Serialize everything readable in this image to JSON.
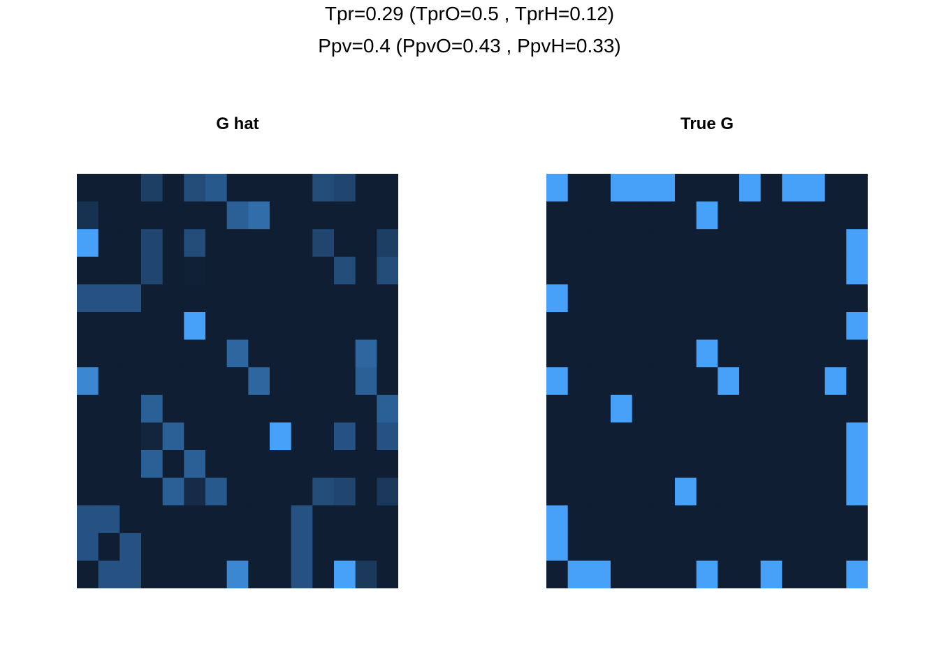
{
  "figure": {
    "title_line_1": "Tpr=0.29 (TprO=0.5 , TprH=0.12)",
    "title_line_2": "Ppv=0.4 (PpvO=0.43 , PpvH=0.33)"
  },
  "colors": {
    "low": "#0f1e33",
    "high": "#47a1f8"
  },
  "chart_data": [
    {
      "type": "heatmap",
      "title": "G hat",
      "rows": 15,
      "cols": 15,
      "value_range": [
        0,
        1
      ],
      "values": [
        [
          0,
          0,
          0,
          0.25,
          0,
          0.35,
          0.45,
          0,
          0,
          0,
          0,
          0.35,
          0.3,
          0,
          0
        ],
        [
          0.15,
          0,
          0,
          0,
          0,
          0,
          0,
          0.5,
          0.6,
          0,
          0,
          0,
          0,
          0,
          0
        ],
        [
          1,
          0,
          0,
          0.3,
          0,
          0.35,
          0,
          0,
          0,
          0,
          0,
          0.3,
          0,
          0,
          0.25
        ],
        [
          0,
          0,
          0,
          0.3,
          0,
          0.02,
          0,
          0,
          0,
          0,
          0,
          0,
          0.35,
          0,
          0.35
        ],
        [
          0.4,
          0.4,
          0.4,
          0,
          0,
          0,
          0,
          0,
          0,
          0,
          0,
          0,
          0,
          0,
          0
        ],
        [
          0,
          0,
          0,
          0,
          0,
          1,
          0,
          0,
          0,
          0,
          0,
          0,
          0,
          0,
          0
        ],
        [
          0,
          0,
          0,
          0,
          0,
          0,
          0,
          0.55,
          0,
          0,
          0,
          0,
          0,
          0.55,
          0
        ],
        [
          0.8,
          0,
          0,
          0,
          0,
          0,
          0,
          0,
          0.55,
          0,
          0,
          0,
          0,
          0.5,
          0
        ],
        [
          0,
          0,
          0,
          0.5,
          0,
          0,
          0,
          0,
          0,
          0,
          0,
          0,
          0,
          0,
          0.5
        ],
        [
          0,
          0,
          0,
          0.05,
          0.5,
          0,
          0,
          0,
          0,
          1,
          0,
          0,
          0.4,
          0,
          0.4
        ],
        [
          0,
          0,
          0,
          0.5,
          0,
          0.5,
          0,
          0,
          0,
          0,
          0,
          0,
          0,
          0,
          0
        ],
        [
          0,
          0,
          0,
          0,
          0.5,
          0.1,
          0.45,
          0,
          0,
          0,
          0,
          0.35,
          0.3,
          0,
          0.2
        ],
        [
          0.4,
          0.4,
          0,
          0,
          0,
          0,
          0,
          0,
          0,
          0,
          0.4,
          0,
          0,
          0,
          0
        ],
        [
          0.4,
          0,
          0.4,
          0,
          0,
          0,
          0,
          0,
          0,
          0,
          0.4,
          0,
          0,
          0,
          0
        ],
        [
          0,
          0.4,
          0.4,
          0,
          0,
          0,
          0,
          0.8,
          0,
          0,
          0.4,
          0,
          1,
          0.2,
          0
        ]
      ]
    },
    {
      "type": "heatmap",
      "title": "True G",
      "rows": 15,
      "cols": 15,
      "value_range": [
        0,
        1
      ],
      "values": [
        [
          1,
          0,
          0,
          1,
          1,
          1,
          0,
          0,
          0,
          1,
          0,
          1,
          1,
          0,
          0
        ],
        [
          0,
          0,
          0,
          0,
          0,
          0,
          0,
          1,
          0,
          0,
          0,
          0,
          0,
          0,
          0
        ],
        [
          0,
          0,
          0,
          0,
          0,
          0,
          0,
          0,
          0,
          0,
          0,
          0,
          0,
          0,
          1
        ],
        [
          0,
          0,
          0,
          0,
          0,
          0,
          0,
          0,
          0,
          0,
          0,
          0,
          0,
          0,
          1
        ],
        [
          1,
          0,
          0,
          0,
          0,
          0,
          0,
          0,
          0,
          0,
          0,
          0,
          0,
          0,
          0
        ],
        [
          0,
          0,
          0,
          0,
          0,
          0,
          0,
          0,
          0,
          0,
          0,
          0,
          0,
          0,
          1
        ],
        [
          0,
          0,
          0,
          0,
          0,
          0,
          0,
          1,
          0,
          0,
          0,
          0,
          0,
          0,
          0
        ],
        [
          1,
          0,
          0,
          0,
          0,
          0,
          0,
          0,
          1,
          0,
          0,
          0,
          0,
          1,
          0
        ],
        [
          0,
          0,
          0,
          1,
          0,
          0,
          0,
          0,
          0,
          0,
          0,
          0,
          0,
          0,
          0
        ],
        [
          0,
          0,
          0,
          0,
          0,
          0,
          0,
          0,
          0,
          0,
          0,
          0,
          0,
          0,
          1
        ],
        [
          0,
          0,
          0,
          0,
          0,
          0,
          0,
          0,
          0,
          0,
          0,
          0,
          0,
          0,
          1
        ],
        [
          0,
          0,
          0,
          0,
          0,
          0,
          1,
          0,
          0,
          0,
          0,
          0,
          0,
          0,
          1
        ],
        [
          1,
          0,
          0,
          0,
          0,
          0,
          0,
          0,
          0,
          0,
          0,
          0,
          0,
          0,
          0
        ],
        [
          1,
          0,
          0,
          0,
          0,
          0,
          0,
          0,
          0,
          0,
          0,
          0,
          0,
          0,
          0
        ],
        [
          0,
          1,
          1,
          0,
          0,
          0,
          0,
          1,
          0,
          0,
          1,
          0,
          0,
          0,
          1
        ]
      ]
    }
  ]
}
